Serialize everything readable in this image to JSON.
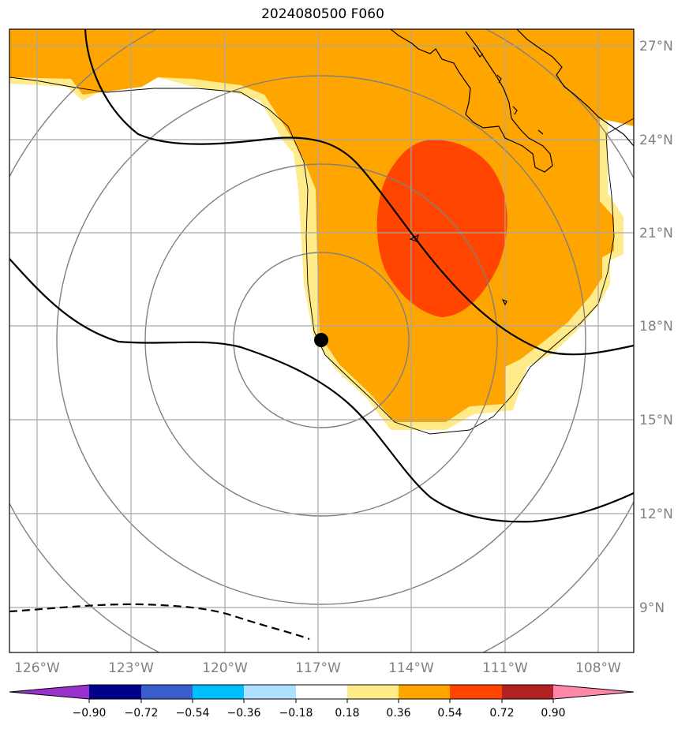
{
  "title": "2024080500 F060",
  "map": {
    "lon_labels": [
      "126°W",
      "123°W",
      "120°W",
      "117°W",
      "114°W",
      "111°W",
      "108°W"
    ],
    "lat_labels": [
      "27°N",
      "24°N",
      "21°N",
      "18°N",
      "15°N",
      "12°N",
      "9°N"
    ],
    "center_marker": "storm-center-dot"
  },
  "colorbar": {
    "ticks": [
      "−0.90",
      "−0.72",
      "−0.54",
      "−0.36",
      "−0.18",
      "0.18",
      "0.36",
      "0.54",
      "0.72",
      "0.90"
    ],
    "colors": [
      "#9932cc",
      "#00008b",
      "#3a5fcd",
      "#00bfff",
      "#b0e0ff",
      "#ffffff",
      "#ffeb8a",
      "#ffa500",
      "#ff4500",
      "#b22222",
      "#ff88aa"
    ]
  }
}
